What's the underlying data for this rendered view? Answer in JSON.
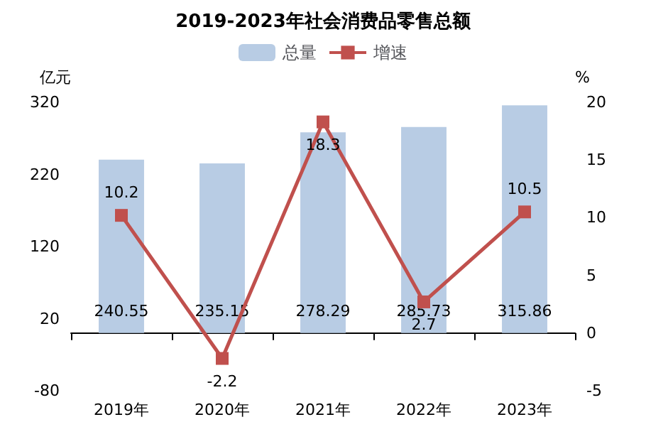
{
  "chart_data": {
    "type": "bar",
    "title": "2019-2023年社会消费品零售总额",
    "categories": [
      "2019年",
      "2020年",
      "2021年",
      "2022年",
      "2023年"
    ],
    "series": [
      {
        "name": "总量",
        "color": "#b8cce4",
        "values": [
          240.55,
          235.15,
          278.29,
          285.73,
          315.86
        ]
      },
      {
        "name": "增速",
        "type": "line",
        "axis": "y2",
        "color": "#c0504d",
        "marker": "square",
        "values": [
          10.2,
          -2.2,
          18.3,
          2.7,
          10.5
        ]
      }
    ],
    "ylabel": "亿元",
    "y2label": "%",
    "ylim": [
      -80,
      320
    ],
    "yticks": [
      -80,
      20,
      120,
      220,
      320
    ],
    "y2lim": [
      -5,
      20
    ],
    "y2ticks": [
      -5,
      0,
      5,
      10,
      15,
      20
    ],
    "data_labels": true,
    "legend": "top"
  }
}
